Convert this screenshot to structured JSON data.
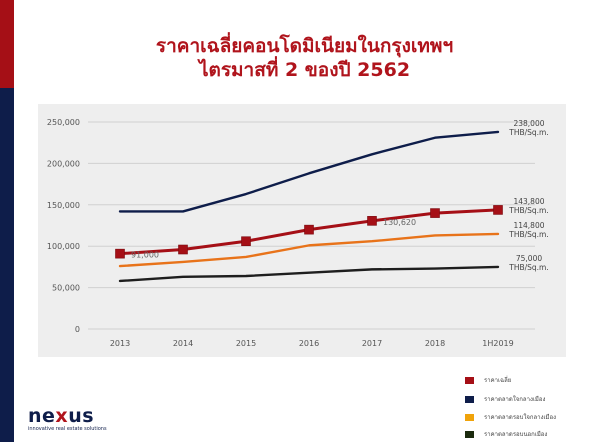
{
  "title": {
    "line1": "ราคาเฉลี่ยคอนโดมิเนียมในกรุงเทพฯ",
    "line2": "ไตรมาสที่ 2 ของปี 2562"
  },
  "logo": {
    "prefix": "ne",
    "x": "x",
    "suffix": "us",
    "tagline": "innovative real estate solutions"
  },
  "legend": [
    {
      "label": "ราคาเฉลี่ย",
      "color": "#a50f16"
    },
    {
      "label": "ราคาตลาดใจกลางเมือง",
      "color": "#0e1d4a"
    },
    {
      "label": "ราคาตลาดรอบใจกลางเมือง",
      "color": "#f0a30a"
    },
    {
      "label": "ราคาตลาดรอบนอกเมือง",
      "color": "#1b2a0e"
    }
  ],
  "chart_data": {
    "type": "line",
    "categories": [
      "2013",
      "2014",
      "2015",
      "2016",
      "2017",
      "2018",
      "1H2019"
    ],
    "ylim": [
      0,
      250000
    ],
    "yticks": [
      "0",
      "50,000",
      "100,000",
      "150,000",
      "200,000",
      "250,000"
    ],
    "grid": true,
    "series": [
      {
        "name": "ราคาตลาดใจกลางเมือง",
        "color": "#0e1d4a",
        "marker": false,
        "values": [
          142000,
          142000,
          163000,
          188000,
          211000,
          231000,
          238000
        ]
      },
      {
        "name": "ราคาเฉลี่ย",
        "color": "#a50f16",
        "marker": true,
        "values": [
          91000,
          96000,
          106000,
          120000,
          130620,
          140000,
          143800
        ]
      },
      {
        "name": "ราคาตลาดรอบใจกลางเมือง",
        "color": "#e8731a",
        "marker": false,
        "values": [
          76000,
          81000,
          87000,
          101000,
          106000,
          113000,
          114800
        ]
      },
      {
        "name": "ราคาตลาดรอบนอกเมือง",
        "color": "#1e1e1e",
        "marker": false,
        "values": [
          58000,
          63000,
          64000,
          68000,
          72000,
          73000,
          75000
        ]
      }
    ],
    "point_labels": [
      {
        "series": 1,
        "index": 0,
        "text": "91,000"
      },
      {
        "series": 1,
        "index": 4,
        "text": "130,620"
      }
    ],
    "end_labels": [
      {
        "series": 0,
        "value": "238,000",
        "unit": "THB/Sq.m."
      },
      {
        "series": 1,
        "value": "143,800",
        "unit": "THB/Sq.m."
      },
      {
        "series": 2,
        "value": "114,800",
        "unit": "THB/Sq.m."
      },
      {
        "series": 3,
        "value": "75,000",
        "unit": "THB/Sq.m."
      }
    ]
  }
}
